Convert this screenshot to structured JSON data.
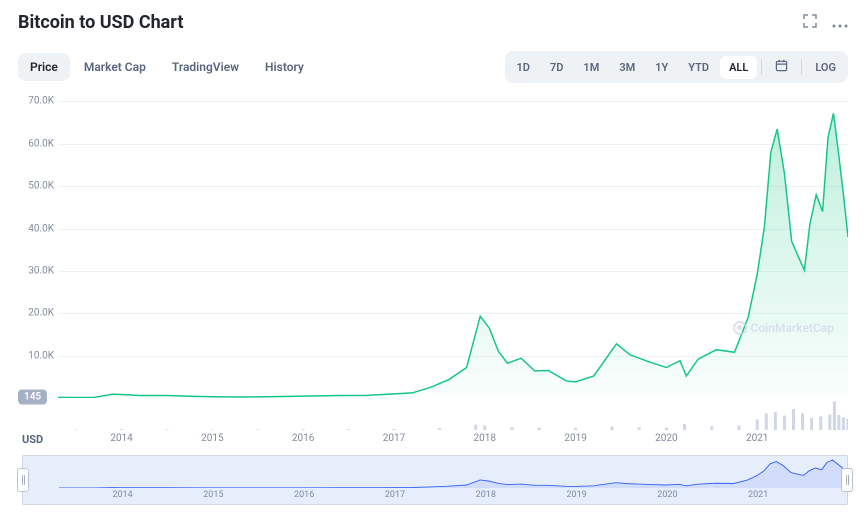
{
  "title": "Bitcoin to USD Chart",
  "tabs": [
    {
      "label": "Price",
      "active": true
    },
    {
      "label": "Market Cap",
      "active": false
    },
    {
      "label": "TradingView",
      "active": false
    },
    {
      "label": "History",
      "active": false
    }
  ],
  "ranges": [
    {
      "label": "1D",
      "active": false
    },
    {
      "label": "7D",
      "active": false
    },
    {
      "label": "1M",
      "active": false
    },
    {
      "label": "3M",
      "active": false
    },
    {
      "label": "1Y",
      "active": false
    },
    {
      "label": "YTD",
      "active": false
    },
    {
      "label": "ALL",
      "active": true
    }
  ],
  "log_label": "LOG",
  "usd_label": "USD",
  "watermark": "CoinMarketCap",
  "badge_value": "145",
  "chart": {
    "type": "area",
    "line_color": "#16c784",
    "fill_top": "rgba(22,199,132,0.28)",
    "fill_bottom": "rgba(22,199,132,0.02)",
    "line_width": 1.5,
    "ylim": [
      0,
      72000
    ],
    "ytick_step": 10000,
    "yticks": [
      {
        "v": 70000,
        "label": "70.0K"
      },
      {
        "v": 60000,
        "label": "60.0K"
      },
      {
        "v": 50000,
        "label": "50.0K"
      },
      {
        "v": 40000,
        "label": "40.0K"
      },
      {
        "v": 30000,
        "label": "30.0K"
      },
      {
        "v": 20000,
        "label": "20.0K"
      },
      {
        "v": 10000,
        "label": "10.0K"
      }
    ],
    "grid_color": "#eff2f5",
    "background_color": "#ffffff",
    "xticks": [
      "2014",
      "2015",
      "2016",
      "2017",
      "2018",
      "2019",
      "2020",
      "2021"
    ],
    "x_start": 2013.3,
    "x_end": 2022.0,
    "data": [
      [
        2013.3,
        145
      ],
      [
        2013.5,
        130
      ],
      [
        2013.7,
        160
      ],
      [
        2013.9,
        900
      ],
      [
        2014.0,
        820
      ],
      [
        2014.2,
        600
      ],
      [
        2014.5,
        580
      ],
      [
        2014.8,
        380
      ],
      [
        2015.0,
        280
      ],
      [
        2015.3,
        250
      ],
      [
        2015.6,
        280
      ],
      [
        2016.0,
        430
      ],
      [
        2016.4,
        580
      ],
      [
        2016.7,
        620
      ],
      [
        2017.0,
        970
      ],
      [
        2017.2,
        1200
      ],
      [
        2017.4,
        2500
      ],
      [
        2017.6,
        4300
      ],
      [
        2017.8,
        7200
      ],
      [
        2017.95,
        19300
      ],
      [
        2018.05,
        16500
      ],
      [
        2018.15,
        11000
      ],
      [
        2018.25,
        8200
      ],
      [
        2018.4,
        9400
      ],
      [
        2018.55,
        6400
      ],
      [
        2018.7,
        6500
      ],
      [
        2018.9,
        4000
      ],
      [
        2019.0,
        3800
      ],
      [
        2019.2,
        5200
      ],
      [
        2019.45,
        12800
      ],
      [
        2019.6,
        10200
      ],
      [
        2019.8,
        8600
      ],
      [
        2020.0,
        7200
      ],
      [
        2020.15,
        8800
      ],
      [
        2020.22,
        5200
      ],
      [
        2020.35,
        9200
      ],
      [
        2020.55,
        11400
      ],
      [
        2020.75,
        10800
      ],
      [
        2020.9,
        19000
      ],
      [
        2021.0,
        29200
      ],
      [
        2021.08,
        40500
      ],
      [
        2021.15,
        58000
      ],
      [
        2021.22,
        63500
      ],
      [
        2021.3,
        53000
      ],
      [
        2021.38,
        37000
      ],
      [
        2021.45,
        33500
      ],
      [
        2021.52,
        30200
      ],
      [
        2021.58,
        41000
      ],
      [
        2021.65,
        48000
      ],
      [
        2021.72,
        44000
      ],
      [
        2021.78,
        61500
      ],
      [
        2021.84,
        67200
      ],
      [
        2021.9,
        57000
      ],
      [
        2021.95,
        48000
      ],
      [
        2022.0,
        38000
      ]
    ]
  },
  "volume": {
    "bar_color": "#cfd6e4",
    "max": 100,
    "data": [
      [
        2013.5,
        2
      ],
      [
        2014.0,
        3
      ],
      [
        2014.5,
        2
      ],
      [
        2015.0,
        2
      ],
      [
        2015.5,
        2
      ],
      [
        2016.0,
        3
      ],
      [
        2016.5,
        3
      ],
      [
        2017.0,
        4
      ],
      [
        2017.5,
        6
      ],
      [
        2017.9,
        18
      ],
      [
        2018.0,
        15
      ],
      [
        2018.3,
        10
      ],
      [
        2018.6,
        8
      ],
      [
        2019.0,
        7
      ],
      [
        2019.4,
        12
      ],
      [
        2019.7,
        9
      ],
      [
        2020.0,
        8
      ],
      [
        2020.2,
        20
      ],
      [
        2020.5,
        12
      ],
      [
        2020.8,
        15
      ],
      [
        2021.0,
        35
      ],
      [
        2021.1,
        55
      ],
      [
        2021.2,
        60
      ],
      [
        2021.3,
        48
      ],
      [
        2021.4,
        70
      ],
      [
        2021.5,
        55
      ],
      [
        2021.6,
        40
      ],
      [
        2021.7,
        45
      ],
      [
        2021.8,
        52
      ],
      [
        2021.85,
        95
      ],
      [
        2021.9,
        50
      ],
      [
        2021.95,
        42
      ],
      [
        2022.0,
        38
      ]
    ]
  },
  "overview": {
    "line_color": "#3861fb",
    "fill_color": "rgba(56,97,251,0.12)",
    "background": "#e7eefb",
    "xticks": [
      "2014",
      "2015",
      "2016",
      "2017",
      "2018",
      "2019",
      "2020",
      "2021"
    ]
  }
}
